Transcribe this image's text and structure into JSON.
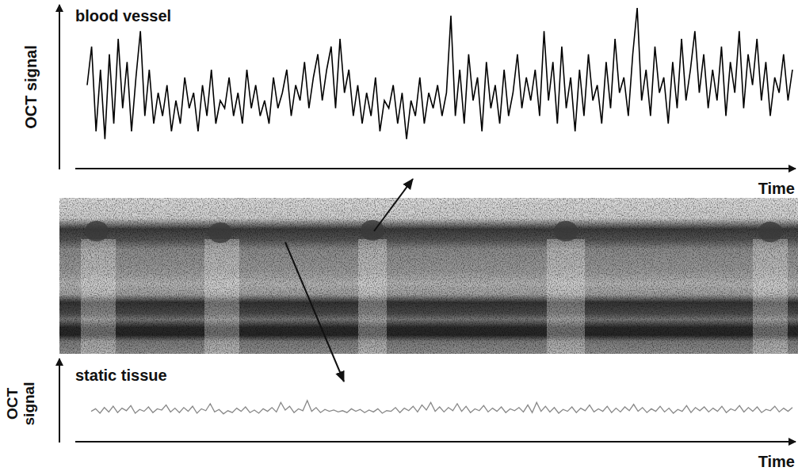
{
  "chart_data": [
    {
      "type": "line",
      "title": "blood vessel",
      "x_label": "Time",
      "y_label": "OCT signal",
      "tick_labels": false,
      "xlim": [
        0,
        159
      ],
      "ylim": [
        0,
        100
      ],
      "x": [
        0,
        1,
        2,
        3,
        4,
        5,
        6,
        7,
        8,
        9,
        10,
        11,
        12,
        13,
        14,
        15,
        16,
        17,
        18,
        19,
        20,
        21,
        22,
        23,
        24,
        25,
        26,
        27,
        28,
        29,
        30,
        31,
        32,
        33,
        34,
        35,
        36,
        37,
        38,
        39,
        40,
        41,
        42,
        43,
        44,
        45,
        46,
        47,
        48,
        49,
        50,
        51,
        52,
        53,
        54,
        55,
        56,
        57,
        58,
        59,
        60,
        61,
        62,
        63,
        64,
        65,
        66,
        67,
        68,
        69,
        70,
        71,
        72,
        73,
        74,
        75,
        76,
        77,
        78,
        79,
        80,
        81,
        82,
        83,
        84,
        85,
        86,
        87,
        88,
        89,
        90,
        91,
        92,
        93,
        94,
        95,
        96,
        97,
        98,
        99,
        100,
        101,
        102,
        103,
        104,
        105,
        106,
        107,
        108,
        109,
        110,
        111,
        112,
        113,
        114,
        115,
        116,
        117,
        118,
        119,
        120,
        121,
        122,
        123,
        124,
        125,
        126,
        127,
        128,
        129,
        130,
        131,
        132,
        133,
        134,
        135,
        136,
        137,
        138,
        139,
        140,
        141,
        142,
        143,
        144,
        145,
        146,
        147,
        148,
        149,
        150,
        151,
        152,
        153,
        154,
        155,
        156,
        157,
        158,
        159
      ],
      "series": [
        {
          "color": "#000000",
          "values": [
            50,
            75,
            20,
            60,
            15,
            70,
            25,
            80,
            35,
            65,
            20,
            55,
            85,
            30,
            60,
            25,
            45,
            30,
            50,
            20,
            40,
            25,
            55,
            35,
            45,
            20,
            50,
            30,
            60,
            25,
            40,
            35,
            55,
            30,
            45,
            25,
            60,
            35,
            50,
            30,
            40,
            25,
            55,
            35,
            45,
            60,
            30,
            50,
            40,
            65,
            35,
            55,
            70,
            40,
            60,
            75,
            35,
            80,
            45,
            60,
            30,
            50,
            25,
            45,
            30,
            55,
            20,
            40,
            35,
            50,
            25,
            45,
            15,
            40,
            30,
            55,
            25,
            45,
            35,
            50,
            30,
            45,
            95,
            30,
            60,
            25,
            70,
            40,
            55,
            20,
            65,
            35,
            50,
            25,
            60,
            30,
            45,
            70,
            35,
            55,
            40,
            60,
            30,
            85,
            40,
            65,
            25,
            75,
            35,
            55,
            20,
            60,
            30,
            70,
            40,
            50,
            25,
            65,
            35,
            80,
            45,
            55,
            30,
            70,
            100,
            40,
            60,
            30,
            75,
            45,
            55,
            25,
            65,
            35,
            80,
            40,
            60,
            85,
            45,
            70,
            35,
            60,
            40,
            75,
            30,
            65,
            45,
            85,
            35,
            70,
            50,
            80,
            40,
            65,
            30,
            55,
            45,
            70,
            40,
            60
          ]
        }
      ]
    },
    {
      "type": "line",
      "title": "static tissue",
      "x_label": "Time",
      "y_label": "OCT signal",
      "tick_labels": false,
      "xlim": [
        0,
        159
      ],
      "ylim": [
        0,
        100
      ],
      "x": [
        0,
        1,
        2,
        3,
        4,
        5,
        6,
        7,
        8,
        9,
        10,
        11,
        12,
        13,
        14,
        15,
        16,
        17,
        18,
        19,
        20,
        21,
        22,
        23,
        24,
        25,
        26,
        27,
        28,
        29,
        30,
        31,
        32,
        33,
        34,
        35,
        36,
        37,
        38,
        39,
        40,
        41,
        42,
        43,
        44,
        45,
        46,
        47,
        48,
        49,
        50,
        51,
        52,
        53,
        54,
        55,
        56,
        57,
        58,
        59,
        60,
        61,
        62,
        63,
        64,
        65,
        66,
        67,
        68,
        69,
        70,
        71,
        72,
        73,
        74,
        75,
        76,
        77,
        78,
        79,
        80,
        81,
        82,
        83,
        84,
        85,
        86,
        87,
        88,
        89,
        90,
        91,
        92,
        93,
        94,
        95,
        96,
        97,
        98,
        99,
        100,
        101,
        102,
        103,
        104,
        105,
        106,
        107,
        108,
        109,
        110,
        111,
        112,
        113,
        114,
        115,
        116,
        117,
        118,
        119,
        120,
        121,
        122,
        123,
        124,
        125,
        126,
        127,
        128,
        129,
        130,
        131,
        132,
        133,
        134,
        135,
        136,
        137,
        138,
        139,
        140,
        141,
        142,
        143,
        144,
        145,
        146,
        147,
        148,
        149,
        150,
        151,
        152,
        153,
        154,
        155,
        156,
        157,
        158,
        159
      ],
      "series": [
        {
          "color": "#888888",
          "values": [
            38,
            42,
            35,
            44,
            37,
            46,
            36,
            43,
            39,
            47,
            35,
            41,
            38,
            45,
            36,
            42,
            40,
            48,
            37,
            43,
            36,
            44,
            38,
            46,
            35,
            42,
            39,
            50,
            37,
            41,
            34,
            39,
            36,
            43,
            38,
            45,
            36,
            40,
            35,
            42,
            38,
            44,
            37,
            52,
            40,
            46,
            36,
            42,
            39,
            55,
            38,
            44,
            36,
            41,
            38,
            40,
            37,
            39,
            36,
            42,
            38,
            41,
            36,
            40,
            37,
            42,
            35,
            39,
            38,
            44,
            36,
            43,
            39,
            46,
            37,
            48,
            40,
            52,
            38,
            45,
            37,
            44,
            39,
            50,
            38,
            46,
            36,
            42,
            39,
            47,
            37,
            43,
            38,
            45,
            36,
            42,
            39,
            44,
            37,
            48,
            36,
            52,
            38,
            46,
            37,
            44,
            35,
            41,
            38,
            45,
            36,
            43,
            39,
            48,
            37,
            42,
            38,
            46,
            36,
            43,
            37,
            45,
            39,
            49,
            38,
            44,
            36,
            42,
            38,
            46,
            37,
            43,
            35,
            41,
            38,
            47,
            36,
            44,
            39,
            45,
            37,
            43,
            38,
            46,
            36,
            42,
            39,
            47,
            37,
            44,
            38,
            45,
            36,
            41,
            39,
            46,
            37,
            43,
            38,
            44
          ]
        }
      ]
    }
  ]
}
